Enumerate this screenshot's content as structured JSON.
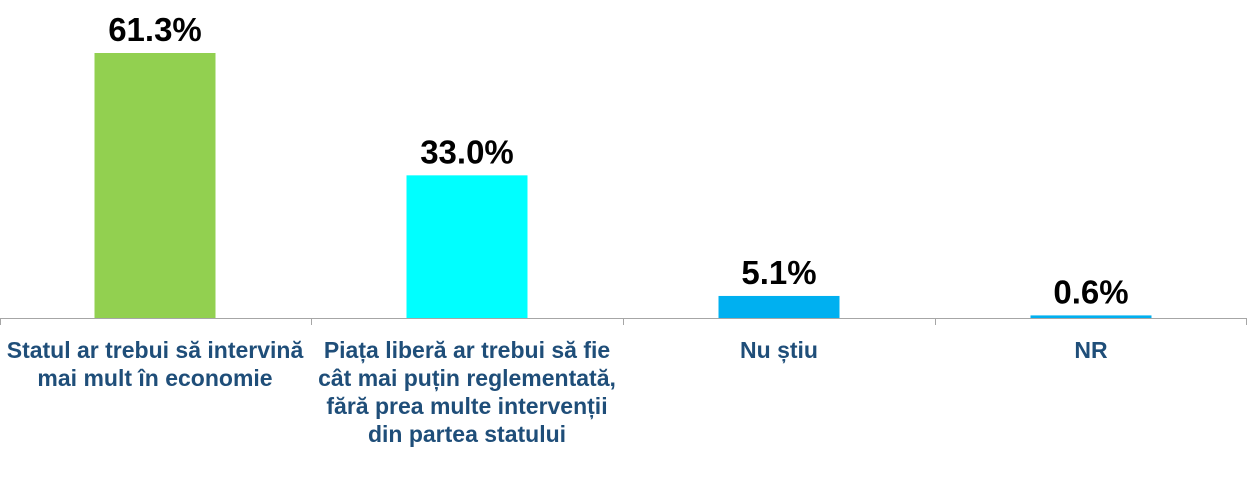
{
  "chart_data": {
    "type": "bar",
    "categories": [
      "Statul ar trebui să intervină mai mult în economie",
      "Piața liberă ar trebui să fie cât mai puțin reglementată, fără prea multe intervenții din partea statului",
      "Nu știu",
      "NR"
    ],
    "values": [
      61.3,
      33.0,
      5.1,
      0.6
    ],
    "value_labels": [
      "61.3%",
      "33.0%",
      "5.1%",
      "0.6%"
    ],
    "colors": [
      "#92d050",
      "#00ffff",
      "#00b0f0",
      "#00b0f0"
    ],
    "ylim": [
      0,
      61.3
    ],
    "grid": false,
    "legend": "none",
    "title": "",
    "xlabel": "",
    "ylabel": ""
  }
}
